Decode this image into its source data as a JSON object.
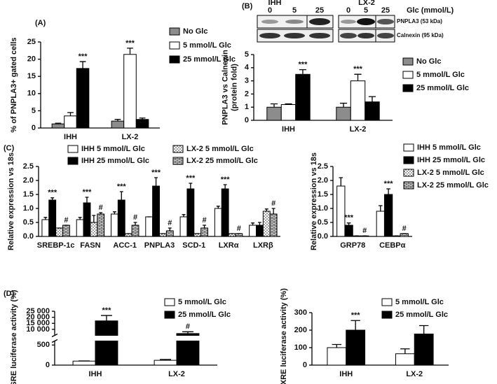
{
  "chart_data": [
    {
      "type": "bar",
      "panel_label": "(A)",
      "ylabel": [
        "% of PNPLA3+ gated cells"
      ],
      "categories": [
        "IHH",
        "LX-2"
      ],
      "series": [
        {
          "name": "No Glc",
          "color": "#8c8c8c",
          "values": [
            1.2,
            2.0
          ],
          "errors": [
            0.2,
            0.5
          ],
          "significance": [
            null,
            null
          ]
        },
        {
          "name": "5 mmol/L Glc",
          "color": "#ffffff",
          "values": [
            3.5,
            21.4
          ],
          "errors": [
            1.0,
            1.8
          ],
          "significance": [
            null,
            "***"
          ]
        },
        {
          "name": "25 mmol/L Glc",
          "color": "#000000",
          "values": [
            17.3,
            2.5
          ],
          "errors": [
            2.0,
            0.4
          ],
          "significance": [
            "***",
            null
          ]
        }
      ],
      "ylim": [
        0,
        25
      ],
      "yticks": [
        0,
        5,
        10,
        15,
        20,
        25
      ]
    },
    {
      "type": "bar",
      "panel_label": "(B)",
      "ylabel": [
        "PNPLA3 vs Calnexin",
        "(protein fold)"
      ],
      "blot": {
        "cell_lines": [
          "IHH",
          "LX-2"
        ],
        "lanes": [
          "0",
          "5",
          "25",
          "0",
          "5",
          "25"
        ],
        "lanes_title": "Glc (mmol/L)",
        "bands": [
          "PNPLA3 (53 kDa)",
          "Calnexin (95 kDa)"
        ]
      },
      "categories": [
        "IHH",
        "LX-2"
      ],
      "series": [
        {
          "name": "No Glc",
          "color": "#8c8c8c",
          "values": [
            1.0,
            1.0
          ],
          "errors": [
            0.25,
            0.3
          ],
          "significance": [
            null,
            null
          ]
        },
        {
          "name": "5 mmol/L Glc",
          "color": "#ffffff",
          "values": [
            1.2,
            3.0
          ],
          "errors": [
            0.05,
            0.5
          ],
          "significance": [
            null,
            "***"
          ]
        },
        {
          "name": "25 mmol/L Glc",
          "color": "#000000",
          "values": [
            3.5,
            1.4
          ],
          "errors": [
            0.35,
            0.4
          ],
          "significance": [
            "***",
            null
          ]
        }
      ],
      "ylim": [
        0,
        5
      ],
      "yticks": [
        0,
        1,
        2,
        3,
        4,
        5
      ]
    },
    {
      "type": "bar",
      "panel_label": "(C)",
      "ylabel": [
        "Relative expression vs 18s"
      ],
      "categories": [
        "SREBP-1c",
        "FASN",
        "ACC-1",
        "PNPLA3",
        "SCD-1",
        "LXRα",
        "LXRβ"
      ],
      "series": [
        {
          "name": "IHH 5 mmol/L Glc",
          "color": "#ffffff",
          "values": [
            0.6,
            0.6,
            0.8,
            0.7,
            0.7,
            1.0,
            0.4
          ],
          "errors": [
            0.08,
            0.08,
            0.08,
            0,
            0.08,
            0.08,
            0.08
          ],
          "significance": [
            null,
            null,
            null,
            null,
            null,
            null,
            null
          ]
        },
        {
          "name": "IHH 25 mmol/L Glc",
          "color": "#000000",
          "values": [
            1.3,
            1.2,
            1.3,
            1.8,
            1.7,
            1.7,
            0.4
          ],
          "errors": [
            0.08,
            0.2,
            0.3,
            0.3,
            0.2,
            0.15,
            0.1
          ],
          "significance": [
            "***",
            "***",
            "***",
            "***",
            "***",
            "***",
            null
          ]
        },
        {
          "name": "LX-2 5 mmol/L Glc",
          "color": "#ffffff",
          "pattern": "dots",
          "values": [
            0.3,
            0.5,
            0.1,
            0.1,
            0.1,
            0.1,
            0.9
          ],
          "errors": [
            0,
            0.25,
            0,
            0,
            0,
            0,
            0.08
          ],
          "significance": [
            null,
            null,
            null,
            null,
            null,
            null,
            null
          ]
        },
        {
          "name": "LX-2 25 mmol/L Glc",
          "color": "#ffffff",
          "pattern": "bricks",
          "values": [
            0.4,
            0.8,
            0.4,
            0.2,
            0.3,
            0.1,
            0.8
          ],
          "errors": [
            0,
            0.05,
            0.1,
            0.1,
            0.1,
            0,
            0.2
          ],
          "significance": [
            "#",
            "#",
            "#",
            "#",
            "#",
            "#",
            "#"
          ]
        }
      ],
      "ylim": [
        0,
        2.5
      ],
      "yticks": [
        {
          "value": 0,
          "label": "0.0"
        },
        0.5,
        {
          "value": 1,
          "label": "1.0"
        },
        1.5,
        {
          "value": 2,
          "label": "2.0"
        },
        2.5
      ]
    },
    {
      "type": "bar",
      "ylabel": [
        "Relative expression vs 18s"
      ],
      "categories": [
        "GRP78",
        "CEBPα"
      ],
      "series": [
        {
          "name": "IHH 5 mmol/L Glc",
          "color": "#ffffff",
          "values": [
            1.8,
            0.9
          ],
          "errors": [
            0.3,
            0.2
          ],
          "significance": [
            null,
            null
          ]
        },
        {
          "name": "IHH 25 mmol/L Glc",
          "color": "#000000",
          "values": [
            0.4,
            1.5
          ],
          "errors": [
            0.08,
            0.2
          ],
          "significance": [
            "***",
            "***"
          ]
        },
        {
          "name": "LX-2 5 mmol/L Glc",
          "color": "#ffffff",
          "pattern": "dots",
          "values": [
            0.02,
            0.02
          ],
          "errors": [
            0,
            0
          ],
          "significance": [
            null,
            null
          ]
        },
        {
          "name": "LX-2 25 mmol/L Glc",
          "color": "#ffffff",
          "pattern": "bricks",
          "values": [
            0.02,
            0.1
          ],
          "errors": [
            0,
            0
          ],
          "significance": [
            "#",
            "#"
          ]
        }
      ],
      "ylim": [
        0,
        2.5
      ],
      "yticks": [
        {
          "value": 0,
          "label": "0.0"
        },
        0.5,
        {
          "value": 1,
          "label": "1.0"
        },
        1.5,
        {
          "value": 2,
          "label": "2.0"
        },
        2.5
      ]
    },
    {
      "type": "bar",
      "panel_label": "(D)",
      "ylabel": [
        "SRE luciferase activity (%)"
      ],
      "categories": [
        "IHH",
        "LX-2"
      ],
      "series": [
        {
          "name": "5 mmol/L Glc",
          "color": "#ffffff",
          "values": [
            100,
            120
          ],
          "errors": [
            5,
            20
          ],
          "significance": [
            null,
            null
          ]
        },
        {
          "name": "25 mmol/L Glc",
          "color": "#000000",
          "values": [
            17000,
            6500
          ],
          "errors": [
            4500,
            1500
          ],
          "significance": [
            "***",
            "#"
          ]
        }
      ],
      "ylim": [
        0,
        25000
      ],
      "ybreak": [
        600,
        5000
      ],
      "yticks": [
        0,
        500,
        {
          "value": 10000,
          "label": "10 000"
        },
        {
          "value": 15000,
          "label": "15 000"
        },
        {
          "value": 20000,
          "label": "20 000"
        },
        {
          "value": 25000,
          "label": "25 000"
        }
      ]
    },
    {
      "type": "bar",
      "ylabel": [
        "LXRE luciferase activity (%)"
      ],
      "categories": [
        "IHH",
        "LX-2"
      ],
      "series": [
        {
          "name": "5 mmol/L Glc",
          "color": "#ffffff",
          "values": [
            100,
            65
          ],
          "errors": [
            18,
            28
          ],
          "significance": [
            null,
            null
          ]
        },
        {
          "name": "25 mmol/L Glc",
          "color": "#000000",
          "values": [
            200,
            178
          ],
          "errors": [
            55,
            48
          ],
          "significance": [
            "***",
            null
          ]
        }
      ],
      "ylim": [
        0,
        300
      ],
      "yticks": [
        0,
        100,
        200,
        300
      ]
    }
  ]
}
